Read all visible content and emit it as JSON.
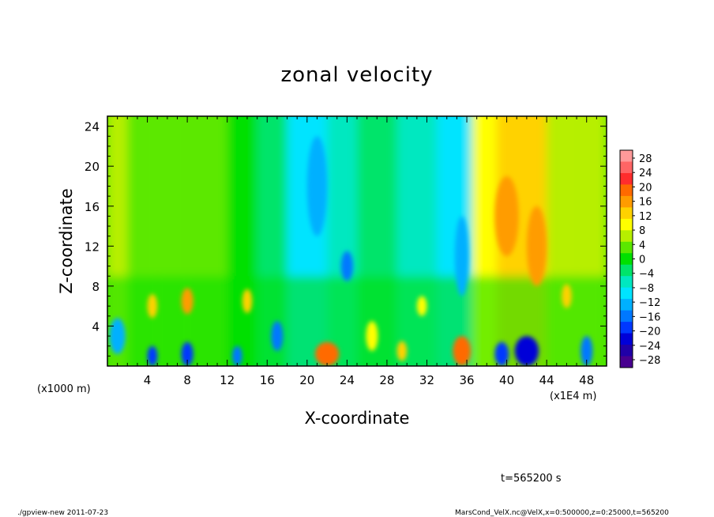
{
  "chart_data": {
    "type": "heatmap",
    "title": "zonal velocity",
    "xlabel": "X-coordinate",
    "ylabel": "Z-coordinate",
    "x_unit": "(x1E4 m)",
    "z_unit": "(x1000 m)",
    "xlim": [
      0,
      50
    ],
    "ylim": [
      0,
      25
    ],
    "xticks": [
      "4",
      "8",
      "12",
      "16",
      "20",
      "24",
      "28",
      "32",
      "36",
      "40",
      "44",
      "48"
    ],
    "yticks": [
      "4",
      "8",
      "12",
      "16",
      "20",
      "24"
    ],
    "xtick_values": [
      4,
      8,
      12,
      16,
      20,
      24,
      28,
      32,
      36,
      40,
      44,
      48
    ],
    "ytick_values": [
      4,
      8,
      12,
      16,
      20,
      24
    ],
    "colorbar": {
      "labels": [
        "28",
        "24",
        "20",
        "16",
        "12",
        "8",
        "4",
        "0",
        "−4",
        "−8",
        "−12",
        "−16",
        "−20",
        "−24",
        "−28"
      ],
      "colors": [
        "#ff9a9a",
        "#ff6565",
        "#ff2d2d",
        "#ff6a00",
        "#ff9c00",
        "#ffd200",
        "#ffff00",
        "#b7ef00",
        "#5be800",
        "#00e000",
        "#00e46a",
        "#00e8c0",
        "#00e4ff",
        "#00b0ff",
        "#0078ff",
        "#0038ff",
        "#0000d8",
        "#2000a8",
        "#480090"
      ]
    },
    "columns": [
      {
        "x0": 0,
        "x1": 2,
        "u": 6
      },
      {
        "x0": 2,
        "x1": 5,
        "u": 3
      },
      {
        "x0": 5,
        "x1": 8,
        "u": 4
      },
      {
        "x0": 8,
        "x1": 12,
        "u": 3
      },
      {
        "x0": 12,
        "x1": 15,
        "u": 1
      },
      {
        "x0": 15,
        "x1": 18,
        "u": -2
      },
      {
        "x0": 18,
        "x1": 22,
        "u": -10
      },
      {
        "x0": 22,
        "x1": 25,
        "u": -5
      },
      {
        "x0": 25,
        "x1": 29,
        "u": -3
      },
      {
        "x0": 29,
        "x1": 33,
        "u": -6
      },
      {
        "x0": 33,
        "x1": 36.5,
        "u": -9
      },
      {
        "x0": 36.5,
        "x1": 39,
        "u": 8
      },
      {
        "x0": 39,
        "x1": 44,
        "u": 12
      },
      {
        "x0": 44,
        "x1": 47,
        "u": 7
      },
      {
        "x0": 47,
        "x1": 50,
        "u": 5
      }
    ],
    "blobs": [
      {
        "x": 40,
        "z": 15,
        "rx": 1.2,
        "rz": 4,
        "u": 16
      },
      {
        "x": 43,
        "z": 12,
        "rx": 1.0,
        "rz": 4,
        "u": 16
      },
      {
        "x": 21,
        "z": 18,
        "rx": 1.0,
        "rz": 5,
        "u": -12
      },
      {
        "x": 24,
        "z": 10,
        "rx": 0.6,
        "rz": 1.5,
        "u": -16
      },
      {
        "x": 35.5,
        "z": 11,
        "rx": 0.7,
        "rz": 4,
        "u": -12
      },
      {
        "x": 8,
        "z": 6.5,
        "rx": 0.6,
        "rz": 1.3,
        "u": 16
      },
      {
        "x": 14,
        "z": 6.5,
        "rx": 0.5,
        "rz": 1.2,
        "u": 12
      },
      {
        "x": 4.5,
        "z": 6,
        "rx": 0.5,
        "rz": 1.2,
        "u": 12
      },
      {
        "x": 22,
        "z": 1.2,
        "rx": 1.2,
        "rz": 1.2,
        "u": 18
      },
      {
        "x": 35.5,
        "z": 1.5,
        "rx": 0.9,
        "rz": 1.5,
        "u": 20
      },
      {
        "x": 29.5,
        "z": 1.5,
        "rx": 0.5,
        "rz": 1.0,
        "u": 14
      },
      {
        "x": 42,
        "z": 1.5,
        "rx": 1.2,
        "rz": 1.5,
        "u": -22
      },
      {
        "x": 39.5,
        "z": 1.2,
        "rx": 0.7,
        "rz": 1.2,
        "u": -18
      },
      {
        "x": 4.5,
        "z": 1.0,
        "rx": 0.5,
        "rz": 1.0,
        "u": -20
      },
      {
        "x": 8,
        "z": 1.2,
        "rx": 0.6,
        "rz": 1.2,
        "u": -18
      },
      {
        "x": 13,
        "z": 1.0,
        "rx": 0.5,
        "rz": 1.0,
        "u": -14
      },
      {
        "x": 48,
        "z": 1.5,
        "rx": 0.6,
        "rz": 1.5,
        "u": -16
      },
      {
        "x": 1,
        "z": 3,
        "rx": 0.8,
        "rz": 1.8,
        "u": -12
      },
      {
        "x": 17,
        "z": 3,
        "rx": 0.6,
        "rz": 1.5,
        "u": -14
      },
      {
        "x": 26.5,
        "z": 3,
        "rx": 0.6,
        "rz": 1.5,
        "u": 10
      },
      {
        "x": 46,
        "z": 7,
        "rx": 0.5,
        "rz": 1.2,
        "u": 12
      },
      {
        "x": 31.5,
        "z": 6,
        "rx": 0.5,
        "rz": 1.0,
        "u": 8
      }
    ]
  },
  "labels": {
    "time": "t=565200 s",
    "footer_left": "./gpview-new  2011-07-23",
    "footer_right": "MarsCond_VelX.nc@VelX,x=0:500000,z=0:25000,t=565200"
  },
  "colors": {
    "background": "#ffffff",
    "axis": "#000000"
  }
}
